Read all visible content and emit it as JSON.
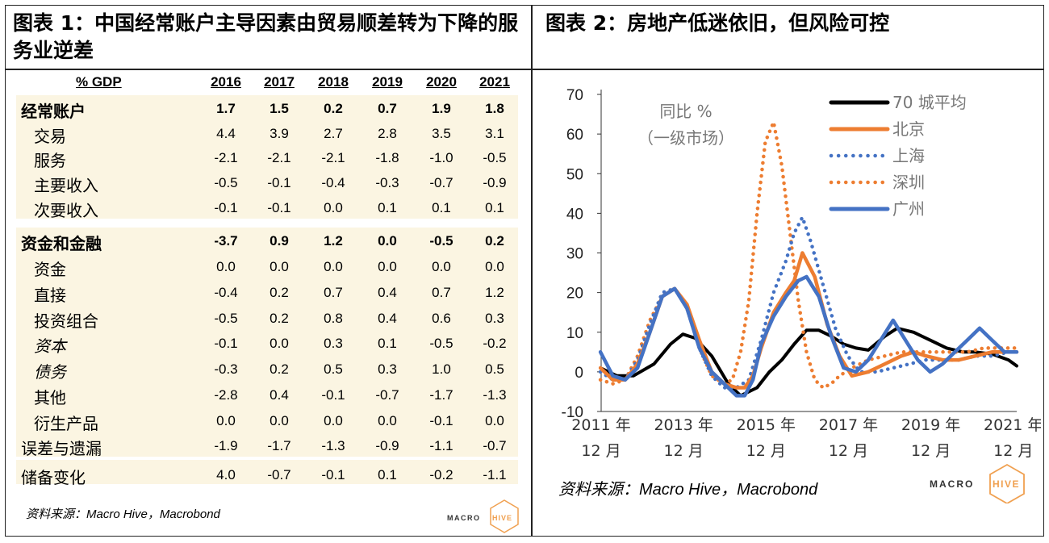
{
  "figure1": {
    "title": "图表 1：中国经常账户主导因素由贸易顺差转为下降的服务业逆差",
    "header_label": "% GDP",
    "years": [
      "2016",
      "2017",
      "2018",
      "2019",
      "2020",
      "2021"
    ],
    "rows": [
      {
        "label": "经常账户",
        "values": [
          "1.7",
          "1.5",
          "0.2",
          "0.7",
          "1.9",
          "1.8"
        ]
      },
      {
        "label": "交易",
        "values": [
          "4.4",
          "3.9",
          "2.7",
          "2.8",
          "3.5",
          "3.1"
        ]
      },
      {
        "label": "服务",
        "values": [
          "-2.1",
          "-2.1",
          "-2.1",
          "-1.8",
          "-1.0",
          "-0.5"
        ]
      },
      {
        "label": "主要收入",
        "values": [
          "-0.5",
          "-0.1",
          "-0.4",
          "-0.3",
          "-0.7",
          "-0.9"
        ]
      },
      {
        "label": "次要收入",
        "values": [
          "-0.1",
          "-0.1",
          "0.0",
          "0.1",
          "0.1",
          "0.1"
        ]
      },
      {
        "label": "资金和金融",
        "values": [
          "-3.7",
          "0.9",
          "1.2",
          "0.0",
          "-0.5",
          "0.2"
        ]
      },
      {
        "label": "资金",
        "values": [
          "0.0",
          "0.0",
          "0.0",
          "0.0",
          "0.0",
          "0.0"
        ]
      },
      {
        "label": "直接",
        "values": [
          "-0.4",
          "0.2",
          "0.7",
          "0.4",
          "0.7",
          "1.2"
        ]
      },
      {
        "label": "投资组合",
        "values": [
          "-0.5",
          "0.2",
          "0.8",
          "0.4",
          "0.6",
          "0.3"
        ]
      },
      {
        "label": "资本",
        "values": [
          "-0.1",
          "0.0",
          "0.3",
          "0.1",
          "-0.5",
          "-0.2"
        ]
      },
      {
        "label": "债务",
        "values": [
          "-0.3",
          "0.2",
          "0.5",
          "0.3",
          "1.0",
          "0.5"
        ]
      },
      {
        "label": "其他",
        "values": [
          "-2.8",
          "0.4",
          "-0.1",
          "-0.7",
          "-1.7",
          "-1.3"
        ]
      },
      {
        "label": "衍生产品",
        "values": [
          "0.0",
          "0.0",
          "0.0",
          "0.0",
          "-0.1",
          "0.0"
        ]
      },
      {
        "label": "误差与遗漏",
        "values": [
          "-1.9",
          "-1.7",
          "-1.3",
          "-0.9",
          "-1.1",
          "-0.7"
        ]
      },
      {
        "label": "储备变化",
        "values": [
          "4.0",
          "-0.7",
          "-0.1",
          "0.1",
          "-0.2",
          "-1.1"
        ]
      }
    ],
    "source": "资料来源：Macro Hive，Macrobond",
    "logo_text_a": "MACRO",
    "logo_text_b": "HIVE"
  },
  "figure2": {
    "title": "图表 2：房地产低迷依旧，但风险可控",
    "source": "资料来源：Macro Hive，Macrobond",
    "logo_text_a": "MACRO",
    "logo_text_b": "HIVE"
  },
  "chart_data": {
    "type": "line",
    "note_line1": "同比 %",
    "note_line2": "（一级市场）",
    "ylim": [
      -10,
      70
    ],
    "yticks": [
      -10,
      0,
      10,
      20,
      30,
      40,
      50,
      60,
      70
    ],
    "xlim": [
      2011.917,
      2022.0
    ],
    "xticks": [
      {
        "x": 2011.917,
        "line1": "2011 年",
        "line2": "12 月"
      },
      {
        "x": 2013.917,
        "line1": "2013 年",
        "line2": "12 月"
      },
      {
        "x": 2015.917,
        "line1": "2015 年",
        "line2": "12 月"
      },
      {
        "x": 2017.917,
        "line1": "2017 年",
        "line2": "12 月"
      },
      {
        "x": 2019.917,
        "line1": "2019 年",
        "line2": "12 月"
      },
      {
        "x": 2021.917,
        "line1": "2021 年",
        "line2": "12 月"
      }
    ],
    "legend_position": "top-right",
    "series": [
      {
        "name": "70 城平均",
        "color": "#000000",
        "style": "solid",
        "x": [
          2011.9,
          2012.3,
          2012.7,
          2013.2,
          2013.6,
          2013.9,
          2014.2,
          2014.6,
          2015.0,
          2015.3,
          2015.7,
          2016.0,
          2016.3,
          2016.6,
          2016.9,
          2017.2,
          2017.5,
          2017.8,
          2018.1,
          2018.4,
          2018.8,
          2019.1,
          2019.5,
          2019.9,
          2020.3,
          2020.7,
          2021.0,
          2021.4,
          2021.8,
          2022.0
        ],
        "y": [
          1,
          -1,
          -1,
          2,
          7,
          9.5,
          8.5,
          4,
          -3,
          -6,
          -4,
          0,
          3,
          7,
          10.5,
          10.5,
          9,
          7,
          6,
          5.5,
          9,
          11,
          10,
          8,
          6,
          5,
          5,
          4.5,
          3,
          1.5
        ]
      },
      {
        "name": "北京",
        "color": "#ed7d31",
        "style": "solid",
        "x": [
          2011.9,
          2012.2,
          2012.5,
          2012.8,
          2013.1,
          2013.4,
          2013.7,
          2014.0,
          2014.3,
          2014.6,
          2014.9,
          2015.2,
          2015.4,
          2015.6,
          2015.8,
          2016.1,
          2016.4,
          2016.6,
          2016.8,
          2017.1,
          2017.4,
          2017.7,
          2018.0,
          2018.4,
          2018.8,
          2019.2,
          2019.5,
          2019.8,
          2020.2,
          2020.6,
          2021.0,
          2021.4,
          2021.8,
          2022.0
        ],
        "y": [
          1,
          -2,
          -2,
          2,
          10,
          19,
          21,
          17,
          8,
          0,
          -3,
          -4,
          -4,
          -1,
          6,
          15,
          20,
          23,
          30,
          24,
          12,
          4,
          -1,
          0,
          2,
          4,
          5,
          4,
          3,
          3,
          4,
          5,
          5,
          5
        ]
      },
      {
        "name": "上海",
        "color": "#4472c4",
        "style": "dotted",
        "x": [
          2011.9,
          2012.2,
          2012.5,
          2012.8,
          2013.1,
          2013.4,
          2013.7,
          2014.0,
          2014.3,
          2014.6,
          2014.9,
          2015.2,
          2015.5,
          2015.8,
          2016.1,
          2016.4,
          2016.6,
          2016.8,
          2017.0,
          2017.3,
          2017.6,
          2017.9,
          2018.2,
          2018.6,
          2019.0,
          2019.4,
          2019.8,
          2020.2,
          2020.6,
          2021.0,
          2021.4,
          2021.8,
          2022.0
        ],
        "y": [
          0,
          -2,
          -2,
          3,
          12,
          20,
          21,
          16,
          6,
          -1,
          -4,
          -4,
          -2,
          8,
          20,
          28,
          35,
          39,
          33,
          22,
          11,
          4,
          0,
          0,
          1,
          2,
          3,
          3,
          3,
          4,
          4,
          5,
          5
        ]
      },
      {
        "name": "深圳",
        "color": "#ed7d31",
        "style": "dotted",
        "x": [
          2011.9,
          2012.2,
          2012.5,
          2012.8,
          2013.1,
          2013.4,
          2013.7,
          2014.0,
          2014.3,
          2014.6,
          2014.9,
          2015.1,
          2015.3,
          2015.5,
          2015.7,
          2015.9,
          2016.1,
          2016.3,
          2016.5,
          2016.7,
          2016.9,
          2017.1,
          2017.3,
          2017.5,
          2017.7,
          2018.0,
          2018.4,
          2018.8,
          2019.2,
          2019.6,
          2020.0,
          2020.4,
          2020.8,
          2021.2,
          2021.6,
          2022.0
        ],
        "y": [
          -2,
          -3,
          -2,
          4,
          13,
          19,
          21,
          16,
          6,
          -1,
          -3,
          -2,
          5,
          18,
          40,
          58,
          63,
          52,
          35,
          18,
          5,
          -2,
          -4,
          -3,
          -1,
          1,
          3,
          4,
          5,
          5,
          5,
          5,
          5,
          6,
          6,
          6
        ]
      },
      {
        "name": "广州",
        "color": "#4472c4",
        "style": "solid",
        "x": [
          2011.9,
          2012.2,
          2012.5,
          2012.8,
          2013.1,
          2013.4,
          2013.7,
          2014.0,
          2014.3,
          2014.6,
          2014.9,
          2015.2,
          2015.4,
          2015.6,
          2015.8,
          2016.1,
          2016.4,
          2016.7,
          2016.9,
          2017.2,
          2017.5,
          2017.8,
          2018.1,
          2018.4,
          2018.7,
          2019.0,
          2019.3,
          2019.6,
          2019.9,
          2020.2,
          2020.5,
          2020.8,
          2021.1,
          2021.4,
          2021.7,
          2022.0
        ],
        "y": [
          5,
          -1,
          -2,
          1,
          10,
          19,
          21,
          16,
          6,
          0,
          -3,
          -6,
          -6,
          -2,
          7,
          14,
          19,
          23,
          24,
          19,
          9,
          1,
          0,
          3,
          8,
          13,
          8,
          3,
          0,
          2,
          5,
          8,
          11,
          8,
          5,
          5
        ]
      }
    ]
  }
}
